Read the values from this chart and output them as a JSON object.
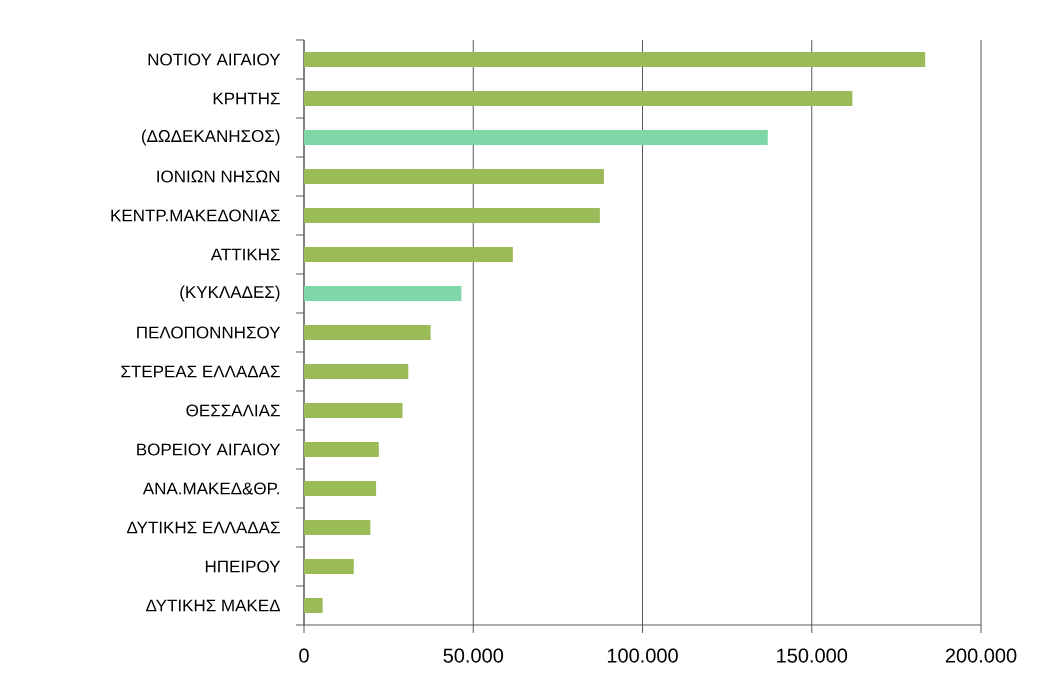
{
  "chart_data": {
    "type": "bar",
    "orientation": "horizontal",
    "categories": [
      "ΝΟΤΙΟΥ ΑΙΓΑΙΟΥ",
      "ΚΡΗΤΗΣ",
      "(ΔΩΔΕΚΑΝΗΣΟΣ)",
      "ΙΟΝΙΩΝ ΝΗΣΩΝ",
      "ΚΕΝΤΡ.ΜΑΚΕΔΟΝΙΑΣ",
      "ΑΤΤΙΚΗΣ",
      "(ΚΥΚΛΑΔΕΣ)",
      "ΠΕΛΟΠΟΝΝΗΣΟΥ",
      "ΣΤΕΡΕΑΣ ΕΛΛΑΔΑΣ",
      "ΘΕΣΣΑΛΙΑΣ",
      "ΒΟΡΕΙΟΥ ΑΙΓΑΙΟΥ",
      "ΑΝΑ.ΜΑΚΕΔ&ΘΡ.",
      "ΔΥΤΙΚΗΣ ΕΛΛΑΔΑΣ",
      "ΗΠΕΙΡΟΥ",
      "ΔΥΤΙΚΗΣ ΜΑΚΕΔ"
    ],
    "values": [
      183500,
      162000,
      137000,
      88600,
      87400,
      61700,
      46500,
      37400,
      30800,
      29100,
      22100,
      21300,
      19600,
      14700,
      5500
    ],
    "colors": [
      "#9bbb59",
      "#9bbb59",
      "#7fd6a6",
      "#9bbb59",
      "#9bbb59",
      "#9bbb59",
      "#7fd6a6",
      "#9bbb59",
      "#9bbb59",
      "#9bbb59",
      "#9bbb59",
      "#9bbb59",
      "#9bbb59",
      "#9bbb59",
      "#9bbb59"
    ],
    "xlim": [
      0,
      200000
    ],
    "xticks": [
      0,
      {
        "value": 50000,
        "label": "50.000"
      },
      {
        "value": 100000,
        "label": "100.000"
      },
      {
        "value": 150000,
        "label": "150.000"
      },
      {
        "value": 200000,
        "label": "200.000"
      }
    ],
    "grid": "x"
  }
}
